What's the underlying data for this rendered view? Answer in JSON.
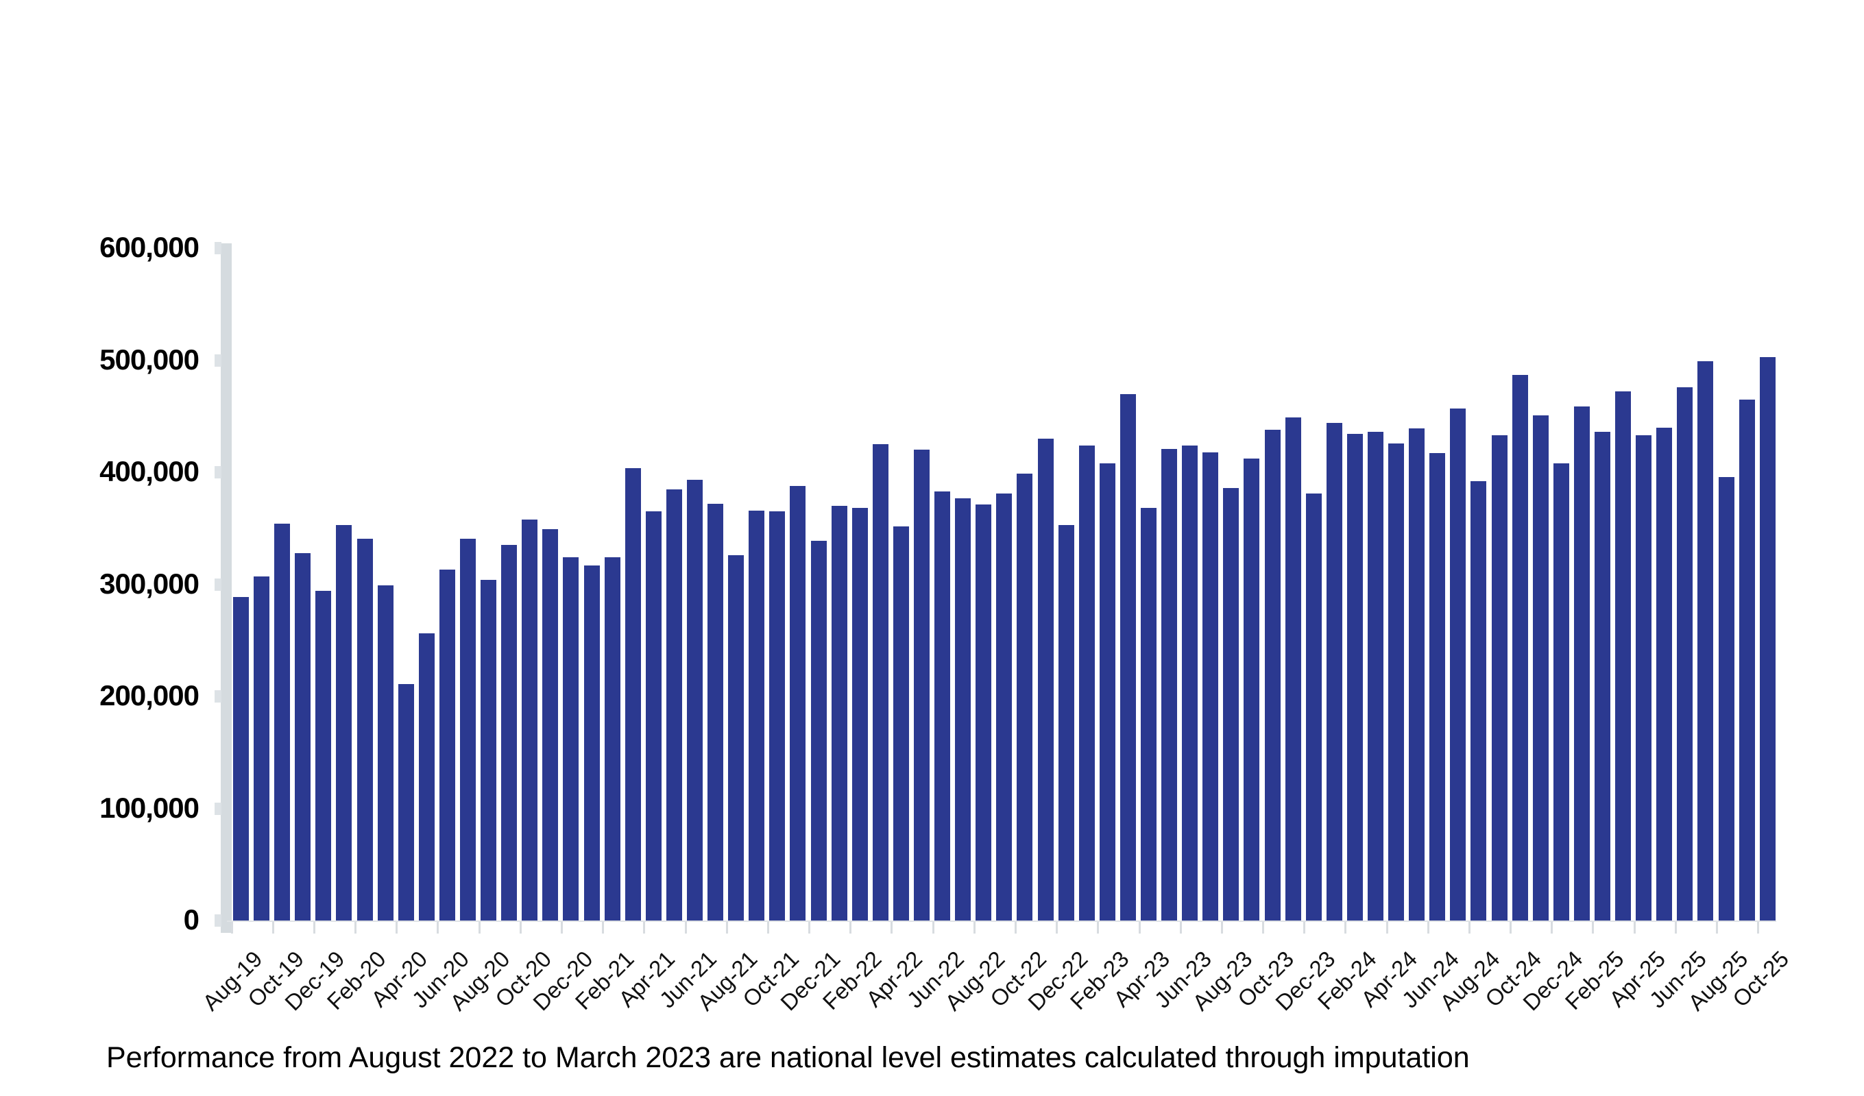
{
  "chart_data": {
    "type": "bar",
    "title": "",
    "xlabel": "",
    "ylabel": "",
    "ylim": [
      0,
      600000
    ],
    "ytick_interval": 100000,
    "gridlines": "none",
    "legend": "none",
    "bar_color": "#2b3990",
    "categories": [
      "Aug-19",
      "Sep-19",
      "Oct-19",
      "Nov-19",
      "Dec-19",
      "Jan-20",
      "Feb-20",
      "Mar-20",
      "Apr-20",
      "May-20",
      "Jun-20",
      "Jul-20",
      "Aug-20",
      "Sep-20",
      "Oct-20",
      "Nov-20",
      "Dec-20",
      "Jan-21",
      "Feb-21",
      "Mar-21",
      "Apr-21",
      "May-21",
      "Jun-21",
      "Jul-21",
      "Aug-21",
      "Sep-21",
      "Oct-21",
      "Nov-21",
      "Dec-21",
      "Jan-22",
      "Feb-22",
      "Mar-22",
      "Apr-22",
      "May-22",
      "Jun-22",
      "Jul-22",
      "Aug-22",
      "Sep-22",
      "Oct-22",
      "Nov-22",
      "Dec-22",
      "Jan-23",
      "Feb-23",
      "Mar-23",
      "Apr-23",
      "May-23",
      "Jun-23",
      "Jul-23",
      "Aug-23",
      "Sep-23",
      "Oct-23",
      "Nov-23",
      "Dec-23",
      "Jan-24",
      "Feb-24",
      "Mar-24",
      "Apr-24",
      "May-24",
      "Jun-24",
      "Jul-24",
      "Aug-24",
      "Sep-24",
      "Oct-24",
      "Nov-24",
      "Dec-24",
      "Jan-25",
      "Feb-25",
      "Mar-25",
      "Apr-25",
      "May-25",
      "Jun-25",
      "Jul-25",
      "Aug-25",
      "Sep-25",
      "Oct-25"
    ],
    "values": [
      289000,
      307000,
      354000,
      328000,
      294000,
      353000,
      341000,
      299000,
      211000,
      256000,
      313000,
      341000,
      304000,
      335000,
      358000,
      349000,
      324000,
      317000,
      324000,
      404000,
      365000,
      385000,
      393000,
      372000,
      326000,
      366000,
      365000,
      388000,
      339000,
      370000,
      368000,
      425000,
      352000,
      420000,
      383000,
      377000,
      371000,
      381000,
      399000,
      430000,
      353000,
      424000,
      408000,
      470000,
      368000,
      421000,
      424000,
      418000,
      386000,
      412000,
      438000,
      449000,
      381000,
      444000,
      434000,
      436000,
      426000,
      439000,
      417000,
      457000,
      392000,
      433000,
      487000,
      451000,
      408000,
      459000,
      436000,
      472000,
      433000,
      440000,
      476000,
      499000,
      396000,
      465000,
      503000
    ],
    "ytick_labels": [
      "0",
      "100,000",
      "200,000",
      "300,000",
      "400,000",
      "500,000",
      "600,000"
    ],
    "xtick_labels": [
      "Aug-19",
      "Oct-19",
      "Dec-19",
      "Feb-20",
      "Apr-20",
      "Jun-20",
      "Aug-20",
      "Oct-20",
      "Dec-20",
      "Feb-21",
      "Apr-21",
      "Jun-21",
      "Aug-21",
      "Oct-21",
      "Dec-21",
      "Feb-22",
      "Apr-22",
      "Jun-22",
      "Aug-22",
      "Oct-22",
      "Dec-22",
      "Feb-23",
      "Apr-23",
      "Jun-23",
      "Aug-23",
      "Oct-23",
      "Dec-23",
      "Feb-24",
      "Apr-24",
      "Jun-24",
      "Aug-24",
      "Oct-24",
      "Dec-24",
      "Feb-25",
      "Apr-25",
      "Jun-25",
      "Aug-25",
      "Oct-25"
    ],
    "x_label_every": 2
  },
  "footnote": "Performance from August 2022 to March 2023 are national level estimates calculated through imputation",
  "colors": {
    "bar": "#2b3990",
    "axis_line": "#d5dbdf",
    "axis_tick": "#dde2e6",
    "x_tick": "#d8dce0",
    "baseline": "#e0e3e6",
    "text": "#000000"
  }
}
